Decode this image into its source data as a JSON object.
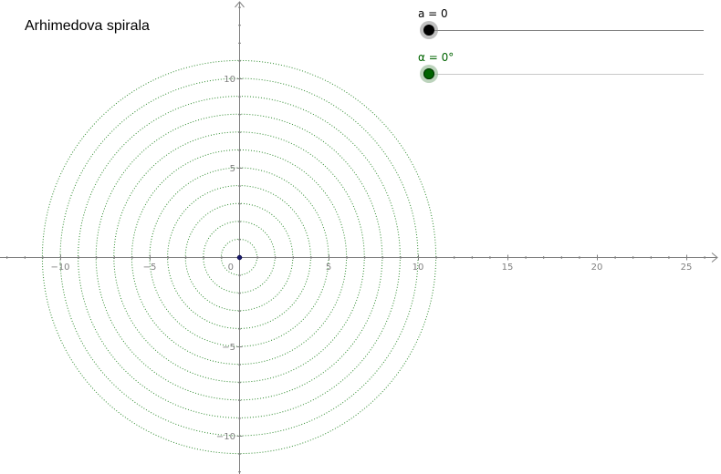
{
  "title": "Arhimedova spirala",
  "sliders": {
    "a": {
      "label": "a = 0",
      "value": 0,
      "color": "#000000",
      "track_color": "#7f7f7f",
      "halo_color": "#8c8c8c"
    },
    "alpha": {
      "label": "α = 0°",
      "value": 0,
      "color": "#006400",
      "track_color": "#c8c8c8",
      "halo_color": "#8fb58f"
    }
  },
  "colors": {
    "axis": "#808080",
    "circles": "#2e8b2e",
    "origin_point": "#1a1a6e"
  },
  "axes": {
    "x_ticks": [
      -10,
      -5,
      0,
      5,
      10,
      15,
      20,
      25
    ],
    "y_ticks": [
      10,
      5,
      -5,
      -10
    ],
    "x_range": [
      -13.3,
      26.8
    ],
    "y_range": [
      -12.3,
      14.3
    ]
  },
  "circles": {
    "radii": [
      1,
      2,
      3,
      4,
      5,
      6,
      7,
      8,
      9,
      10,
      11
    ]
  }
}
